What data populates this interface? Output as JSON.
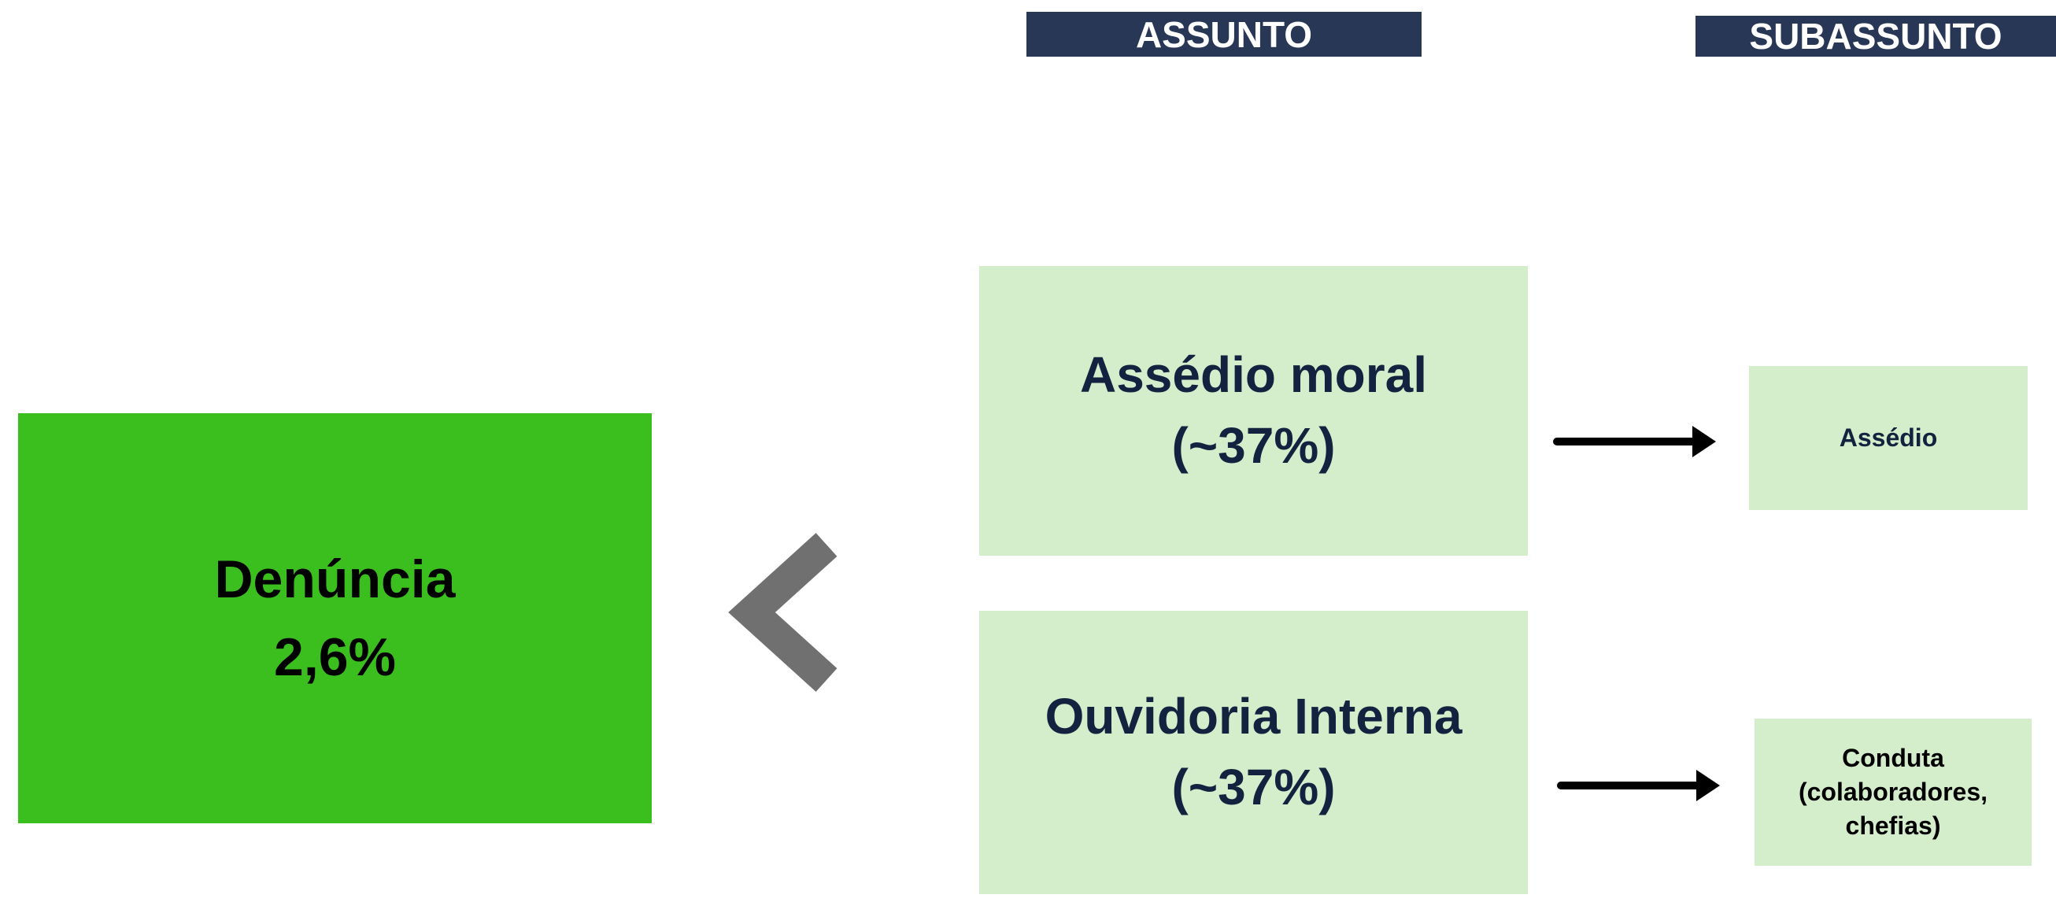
{
  "headers": {
    "assunto": "ASSUNTO",
    "subassunto": "SUBASSUNTO"
  },
  "main": {
    "lines": [
      "Denúncia",
      "2,6%"
    ]
  },
  "assuntos": [
    {
      "lines": [
        "Assédio moral",
        "(~37%)"
      ],
      "subassunto": {
        "lines": [
          "Assédio"
        ]
      }
    },
    {
      "lines": [
        "Ouvidoria Interna",
        "(~37%)"
      ],
      "subassunto": {
        "lines": [
          "Conduta",
          "(colaboradores,",
          "chefias)"
        ]
      }
    }
  ]
}
